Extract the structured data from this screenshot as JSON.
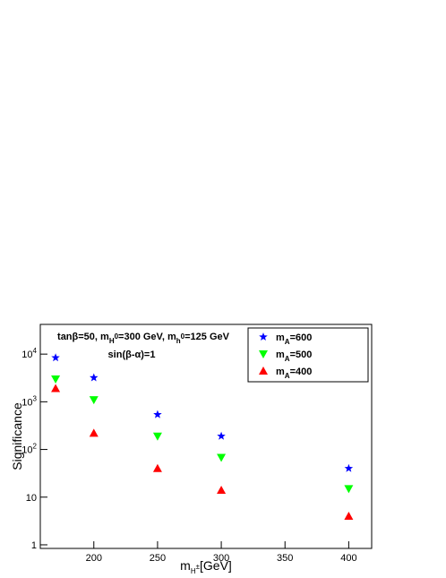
{
  "chart_data": {
    "type": "scatter",
    "log_y": true,
    "annotations": [
      "tanβ=50, m_{H^0}=300 GeV, m_{h^0}=125 GeV",
      "sin(β-α)=1"
    ],
    "x_label": "m_{H^±}[GeV]",
    "y_label": "Significance",
    "xlim": [
      158,
      418
    ],
    "ylim": [
      0.84,
      42000
    ],
    "xticks": [
      200,
      250,
      300,
      350,
      400
    ],
    "yticks": [
      1,
      10,
      {
        "value": 100,
        "label": "10^2"
      },
      {
        "value": 1000,
        "label": "10^3"
      },
      {
        "value": 10000,
        "label": "10^4"
      }
    ],
    "series": [
      {
        "name": "m_{A}=600",
        "color": "#0000ff",
        "marker": "star",
        "x": [
          170,
          200,
          250,
          300,
          400
        ],
        "values": [
          8400,
          3200,
          540,
          190,
          40
        ]
      },
      {
        "name": "m_{A}=500",
        "color": "#00ff00",
        "marker": "triangle-down",
        "x": [
          170,
          200,
          250,
          300,
          400
        ],
        "values": [
          3000,
          1100,
          190,
          68,
          15
        ]
      },
      {
        "name": "m_{A}=400",
        "color": "#ff0000",
        "marker": "triangle-up",
        "x": [
          170,
          200,
          250,
          300,
          400
        ],
        "values": [
          1900,
          220,
          40,
          14,
          4
        ]
      }
    ]
  }
}
